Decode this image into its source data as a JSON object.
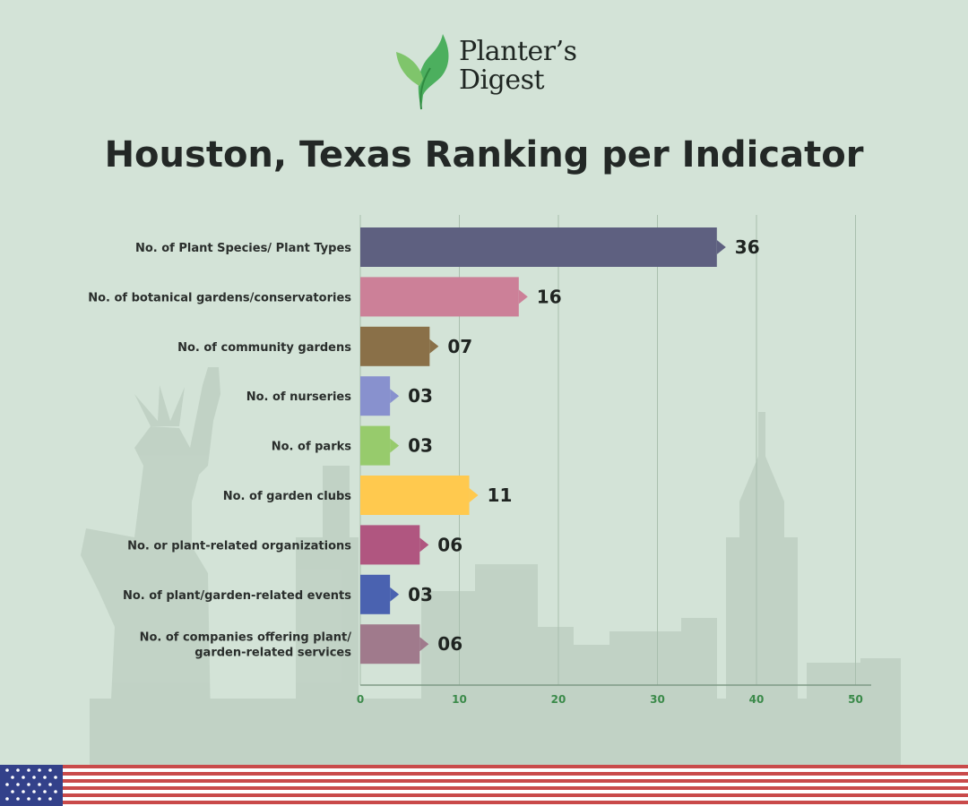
{
  "brand": {
    "line1": "Planter’s",
    "line2": "Digest",
    "leaf_color": "#4caf5e"
  },
  "chart_data": {
    "type": "bar",
    "orientation": "horizontal",
    "title": "Houston, Texas Ranking per Indicator",
    "categories": [
      [
        "No. of Plant Species/ Plant Types"
      ],
      [
        "No. of botanical gardens/conservatories"
      ],
      [
        "No. of community gardens"
      ],
      [
        "No. of nurseries"
      ],
      [
        "No. of parks"
      ],
      [
        "No. of garden clubs"
      ],
      [
        "No. or plant-related organizations"
      ],
      [
        "No. of plant/garden-related events"
      ],
      [
        "No. of companies offering plant/",
        "garden-related services"
      ]
    ],
    "values": [
      36,
      16,
      7,
      3,
      3,
      11,
      6,
      3,
      6
    ],
    "value_labels": [
      "36",
      "16",
      "07",
      "03",
      "03",
      "11",
      "06",
      "03",
      "06"
    ],
    "colors": [
      "#5e6080",
      "#cc8098",
      "#8a7048",
      "#8891ce",
      "#97cb6c",
      "#ffc94e",
      "#b05680",
      "#4a62b0",
      "#a07a8c"
    ],
    "xlim": [
      0,
      50
    ],
    "xticks": [
      0,
      10,
      20,
      30,
      40,
      50
    ],
    "grid": true
  }
}
